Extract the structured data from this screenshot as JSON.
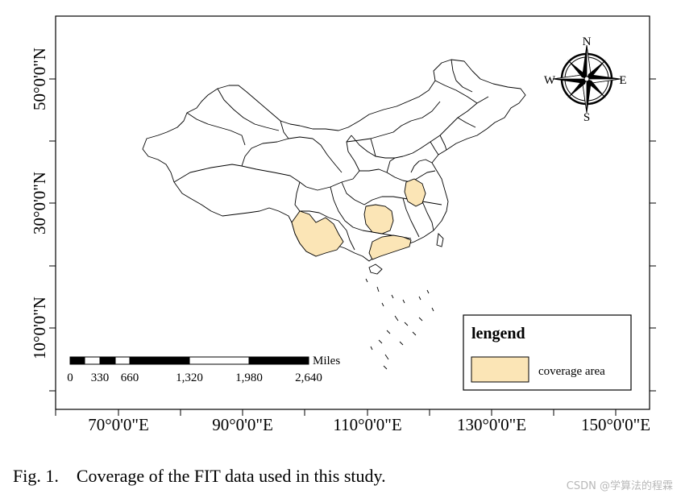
{
  "map": {
    "latitude_labels": [
      "50°0'0\"N",
      "30°0'0\"N",
      "10°0'0\"N"
    ],
    "longitude_labels": [
      "70°0'0\"E",
      "90°0'0\"E",
      "110°0'0\"E",
      "130°0'0\"E",
      "150°0'0\"E"
    ],
    "compass": {
      "north": "N",
      "south": "S",
      "east": "E",
      "west": "W"
    },
    "scale_bar": {
      "unit": "Miles",
      "ticks": [
        "0",
        "330",
        "660",
        "1,320",
        "1,980",
        "2,640"
      ]
    },
    "legend": {
      "title": "lengend",
      "items": [
        {
          "label": "coverage area",
          "color": "#fbe5b6"
        }
      ]
    },
    "colors": {
      "coverage": "#fbe5b6",
      "outline": "#000000",
      "background": "#ffffff"
    }
  },
  "caption": {
    "label": "Fig. 1.",
    "text": "Coverage of the FIT data used in this study."
  },
  "watermark": "CSDN @学算法的程霖"
}
